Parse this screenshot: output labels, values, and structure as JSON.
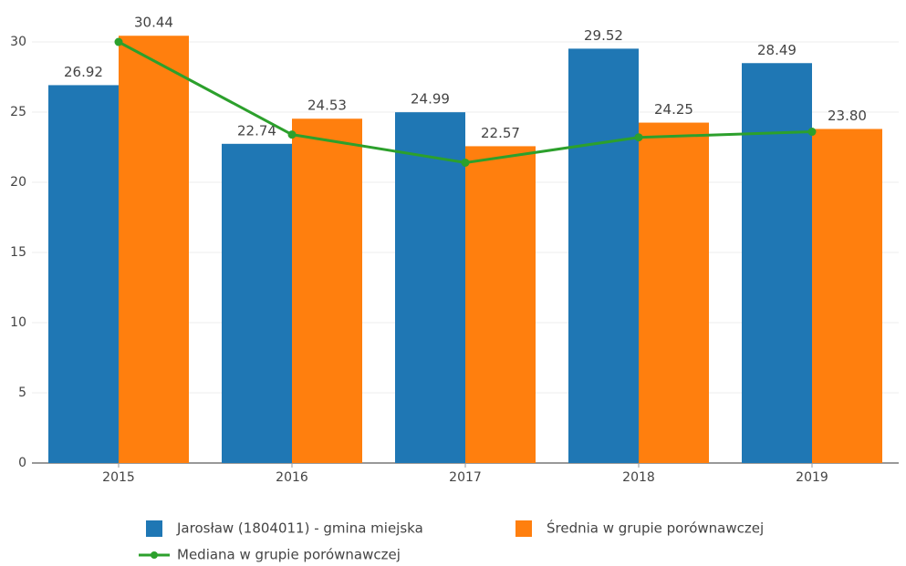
{
  "chart_data": {
    "type": "bar",
    "categories": [
      "2015",
      "2016",
      "2017",
      "2018",
      "2019"
    ],
    "series": [
      {
        "name": "Jarosław (1804011) - gmina miejska",
        "type": "bar",
        "color": "#1f77b4",
        "values": [
          26.92,
          22.74,
          24.99,
          29.52,
          28.49
        ]
      },
      {
        "name": "Średnia w grupie porównawczej",
        "type": "bar",
        "color": "#ff7f0e",
        "values": [
          30.44,
          24.53,
          22.57,
          24.25,
          23.8
        ],
        "value_labels": [
          "30.44",
          "24.53",
          "22.57",
          "24.25",
          "23.80"
        ]
      },
      {
        "name": "Mediana w grupie porównawczej",
        "type": "line",
        "color": "#2ca02c",
        "values": [
          30.0,
          23.4,
          21.4,
          23.2,
          23.6
        ]
      }
    ],
    "ylim": [
      0,
      30
    ],
    "yticks": [
      0,
      5,
      10,
      15,
      20,
      25,
      30
    ],
    "grid": true,
    "legend": "bottom"
  }
}
